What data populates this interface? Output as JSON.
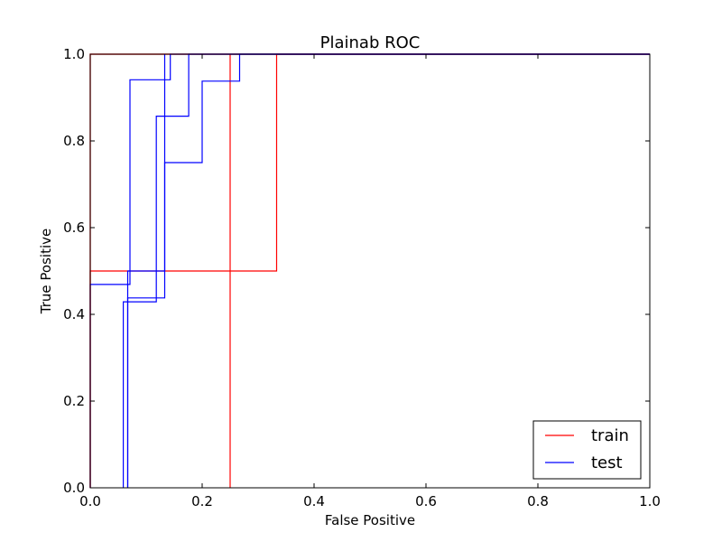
{
  "chart_data": {
    "type": "line",
    "title": "Plainab ROC",
    "xlabel": "False Positive",
    "ylabel": "True Positive",
    "xlim": [
      0.0,
      1.0
    ],
    "ylim": [
      0.0,
      1.0
    ],
    "xticks": [
      "0.0",
      "0.2",
      "0.4",
      "0.6",
      "0.8",
      "1.0"
    ],
    "yticks": [
      "0.0",
      "0.2",
      "0.4",
      "0.6",
      "0.8",
      "1.0"
    ],
    "grid": false,
    "legend": {
      "placement": "lower-right",
      "entries": [
        {
          "label": "train",
          "color": "#ff0000"
        },
        {
          "label": "test",
          "color": "#0000ff"
        }
      ]
    },
    "series": [
      {
        "name": "train",
        "color": "#ff0000",
        "x": [
          0,
          0,
          1
        ],
        "y": [
          0,
          1,
          1
        ]
      },
      {
        "name": "train",
        "color": "#ff0000",
        "x": [
          0,
          0,
          0.333,
          0.333,
          1
        ],
        "y": [
          0,
          0.5,
          0.5,
          1,
          1
        ]
      },
      {
        "name": "train",
        "color": "#ff0000",
        "x": [
          0,
          0,
          0.25,
          0.25,
          1
        ],
        "y": [
          0,
          1,
          1,
          1,
          1
        ]
      },
      {
        "name": "train",
        "color": "#ff0000",
        "x": [
          0.25,
          0.25
        ],
        "y": [
          0,
          1
        ]
      },
      {
        "name": "test",
        "color": "#0000ff",
        "x": [
          0,
          0,
          0.071,
          0.071,
          0.143,
          0.143,
          1
        ],
        "y": [
          0,
          0.469,
          0.469,
          0.941,
          0.941,
          1,
          1
        ]
      },
      {
        "name": "test",
        "color": "#0000ff",
        "x": [
          0.059,
          0.059,
          0.118,
          0.118,
          0.176,
          0.176,
          1
        ],
        "y": [
          0,
          0.429,
          0.429,
          0.857,
          0.857,
          1,
          1
        ]
      },
      {
        "name": "test",
        "color": "#0000ff",
        "x": [
          0.067,
          0.067,
          0.133,
          0.133,
          0.2,
          0.2,
          0.267,
          0.267,
          1
        ],
        "y": [
          0,
          0.438,
          0.438,
          0.75,
          0.75,
          0.938,
          0.938,
          1,
          1
        ]
      },
      {
        "name": "test",
        "color": "#0000ff",
        "x": [
          0.067,
          0.067,
          0.133,
          0.133
        ],
        "y": [
          0,
          0.5,
          0.5,
          1
        ]
      }
    ]
  }
}
